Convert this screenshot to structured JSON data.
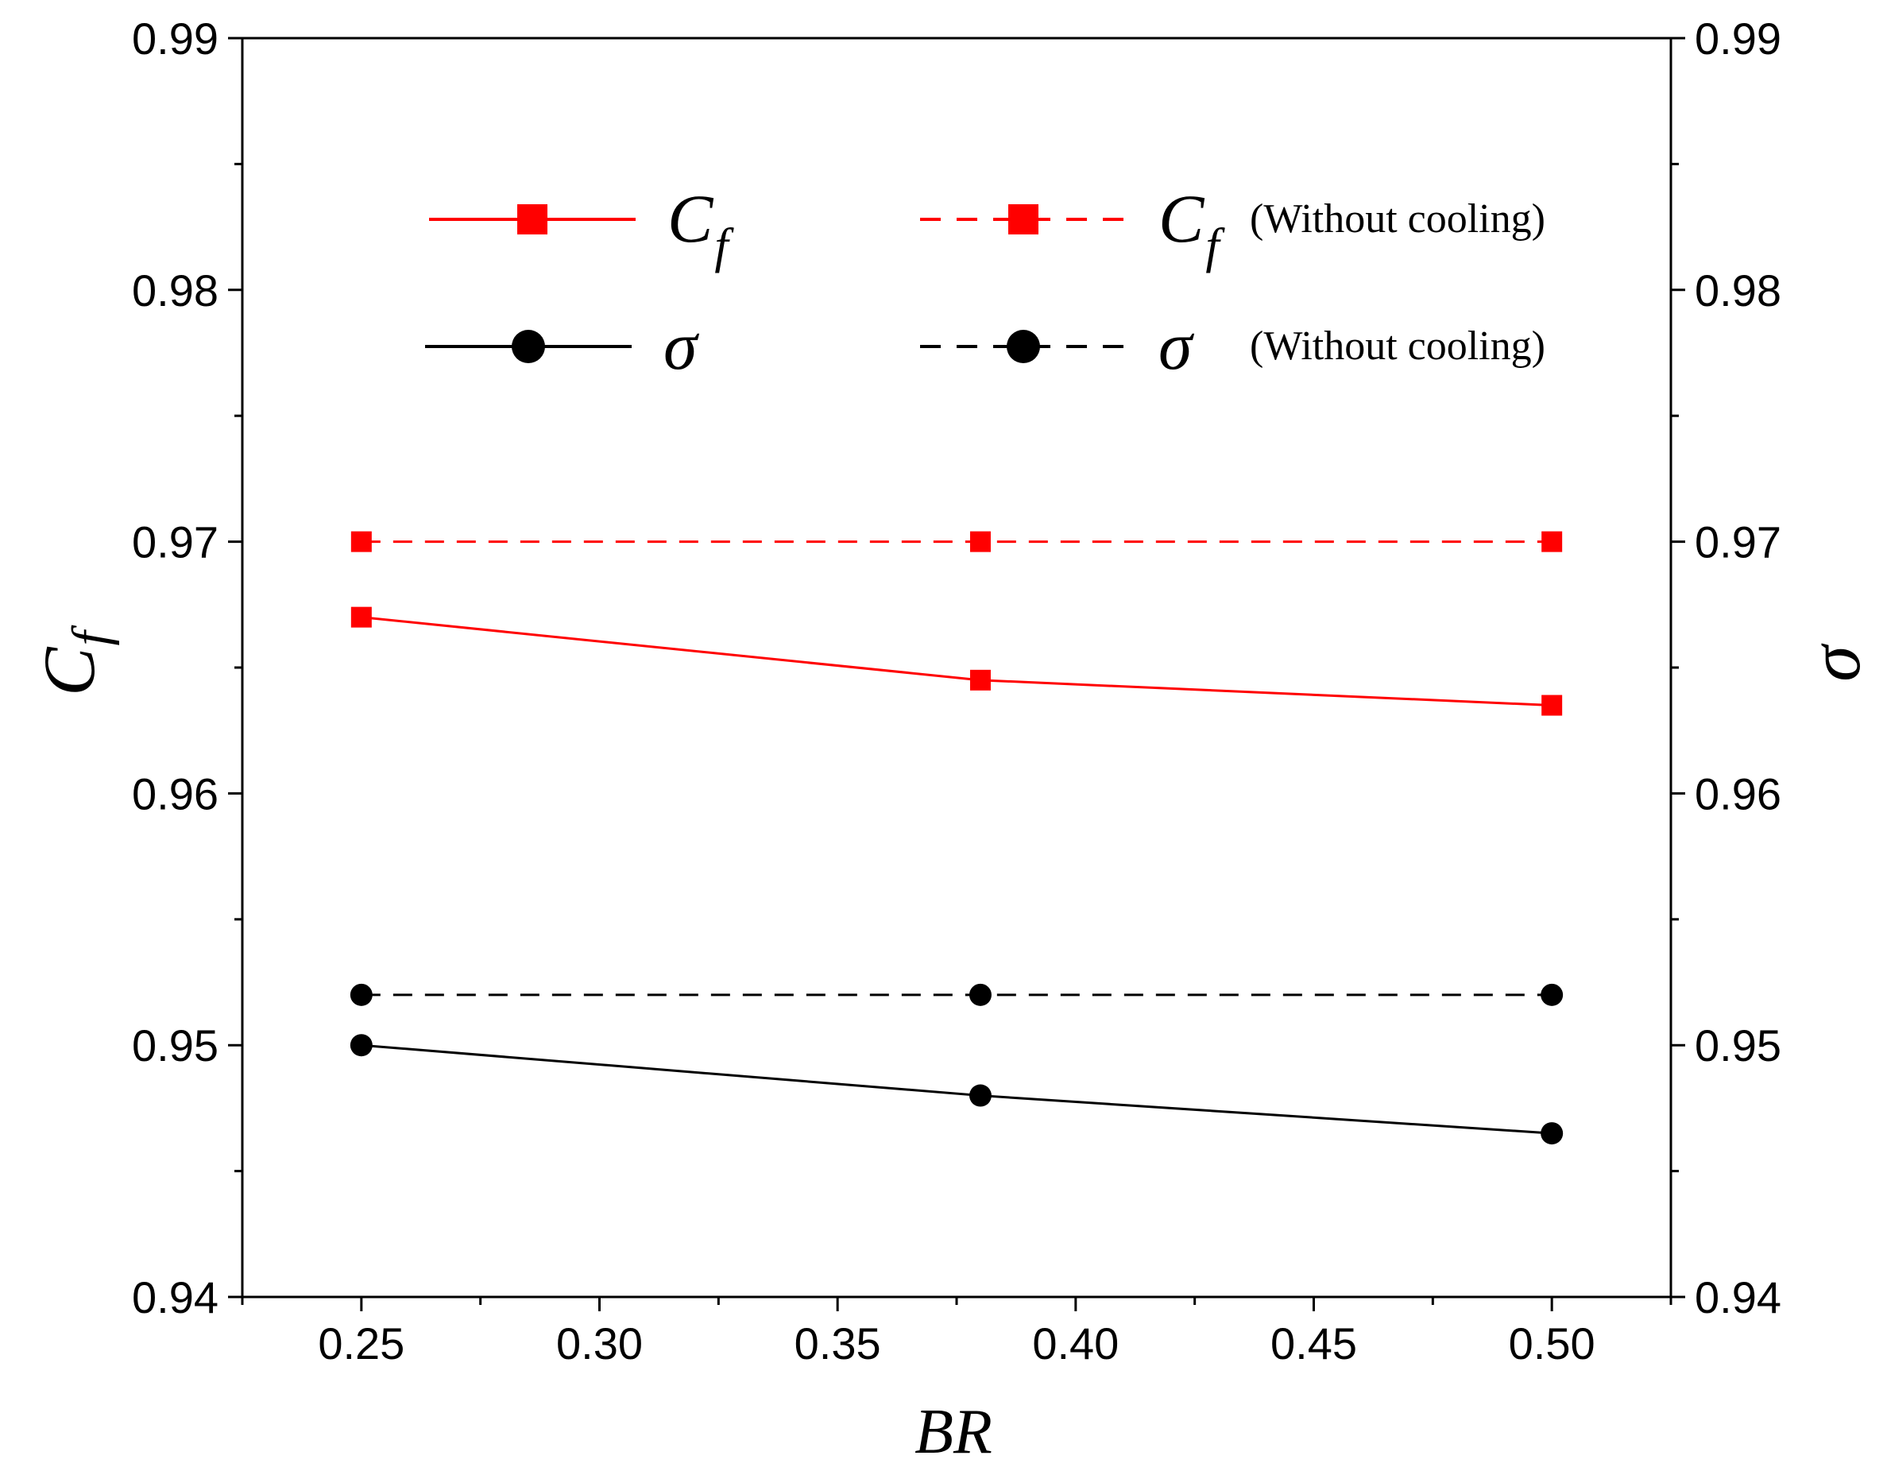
{
  "chart_data": {
    "type": "line",
    "title": "",
    "xlabel": "BR",
    "ylabel_left": {
      "main": "C",
      "sub": "f"
    },
    "ylabel_right": "σ",
    "x": [
      0.25,
      0.38,
      0.5
    ],
    "xlim": [
      0.225,
      0.525
    ],
    "ylim": [
      0.94,
      0.99
    ],
    "xticks": [
      "0.25",
      "0.30",
      "0.35",
      "0.40",
      "0.45",
      "0.50"
    ],
    "yticks_left": [
      "0.94",
      "0.95",
      "0.96",
      "0.97",
      "0.98",
      "0.99"
    ],
    "yticks_right": [
      "0.94",
      "0.95",
      "0.96",
      "0.97",
      "0.98",
      "0.99"
    ],
    "grid": false,
    "legend_position": "top",
    "series": [
      {
        "id": "cf",
        "name": "C",
        "sub": "f",
        "note": "",
        "values": [
          0.967,
          0.9645,
          0.9635
        ],
        "color": "#ff0000",
        "marker": "square",
        "dash": "solid"
      },
      {
        "id": "cf_nc",
        "name": "C",
        "sub": "f",
        "note": "(Without cooling)",
        "values": [
          0.97,
          0.97,
          0.97
        ],
        "color": "#ff0000",
        "marker": "square",
        "dash": "dashed"
      },
      {
        "id": "sigma",
        "name": "σ",
        "sub": "",
        "note": "",
        "values": [
          0.95,
          0.948,
          0.9465
        ],
        "color": "#000000",
        "marker": "circle",
        "dash": "solid"
      },
      {
        "id": "sigma_nc",
        "name": "σ",
        "sub": "",
        "note": "(Without cooling)",
        "values": [
          0.952,
          0.952,
          0.952
        ],
        "color": "#000000",
        "marker": "circle",
        "dash": "dashed"
      }
    ]
  }
}
